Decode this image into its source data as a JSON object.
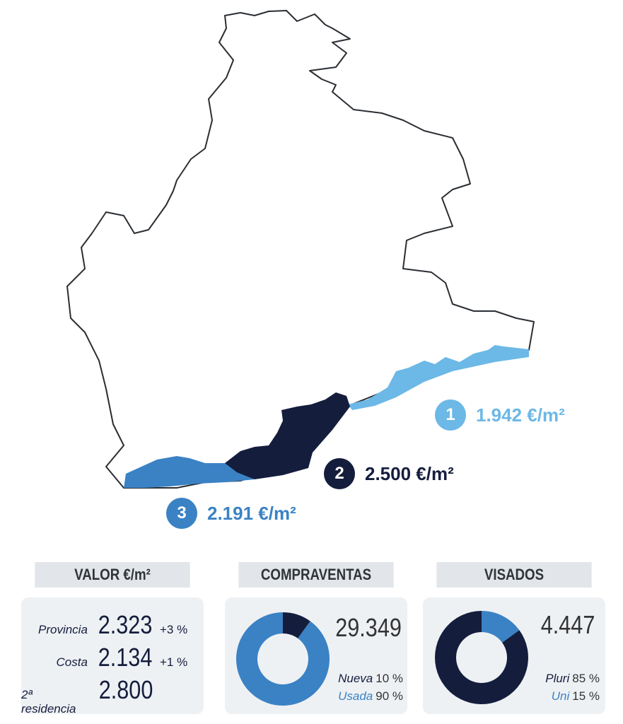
{
  "colors": {
    "zone1": "#6cb8e6",
    "zone2": "#151d3d",
    "zone3": "#3a82c4",
    "outline": "#2a2e33",
    "panel": "#eef1f4",
    "header": "#e2e5e9"
  },
  "zones": [
    {
      "number": "1",
      "value": "1.942 €/m²"
    },
    {
      "number": "2",
      "value": "2.500 €/m²"
    },
    {
      "number": "3",
      "value": "2.191 €/m²"
    }
  ],
  "valor": {
    "title": "VALOR €/m²",
    "rows": [
      {
        "label": "Provincia",
        "value": "2.323",
        "change": "+3 %"
      },
      {
        "label": "Costa",
        "value": "2.134",
        "change": "+1 %"
      },
      {
        "label": "2ª residencia",
        "value": "2.800",
        "change": ""
      }
    ]
  },
  "compraventas": {
    "title": "COMPRAVENTAS",
    "total": "29.349",
    "segments": [
      {
        "label": "Nueva",
        "pct_text": "10 %",
        "value": 10
      },
      {
        "label": "Usada",
        "pct_text": "90 %",
        "value": 90
      }
    ]
  },
  "visados": {
    "title": "VISADOS",
    "total": "4.447",
    "segments": [
      {
        "label": "Pluri",
        "pct_text": "85 %",
        "value": 85
      },
      {
        "label": "Uni",
        "pct_text": "15 %",
        "value": 15
      }
    ]
  }
}
